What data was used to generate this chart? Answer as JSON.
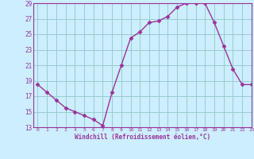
{
  "x": [
    0,
    1,
    2,
    3,
    4,
    5,
    6,
    7,
    8,
    9,
    10,
    11,
    12,
    13,
    14,
    15,
    16,
    17,
    18,
    19,
    20,
    21,
    22,
    23
  ],
  "y": [
    18.5,
    17.5,
    16.5,
    15.5,
    15.0,
    14.5,
    14.0,
    13.2,
    17.5,
    21.0,
    24.5,
    25.3,
    26.5,
    26.7,
    27.3,
    28.5,
    29.0,
    29.0,
    29.0,
    26.5,
    23.5,
    20.5,
    18.5,
    18.5
  ],
  "xlabel": "Windchill (Refroidissement éolien,°C)",
  "bg_color": "#cceeff",
  "line_color": "#993399",
  "grid_color": "#99cccc",
  "tick_color": "#993399",
  "ylim": [
    13,
    29
  ],
  "xlim": [
    -0.5,
    23
  ],
  "yticks": [
    13,
    15,
    17,
    19,
    21,
    23,
    25,
    27,
    29
  ],
  "xticks": [
    0,
    1,
    2,
    3,
    4,
    5,
    6,
    7,
    8,
    9,
    10,
    11,
    12,
    13,
    14,
    15,
    16,
    17,
    18,
    19,
    20,
    21,
    22,
    23
  ]
}
